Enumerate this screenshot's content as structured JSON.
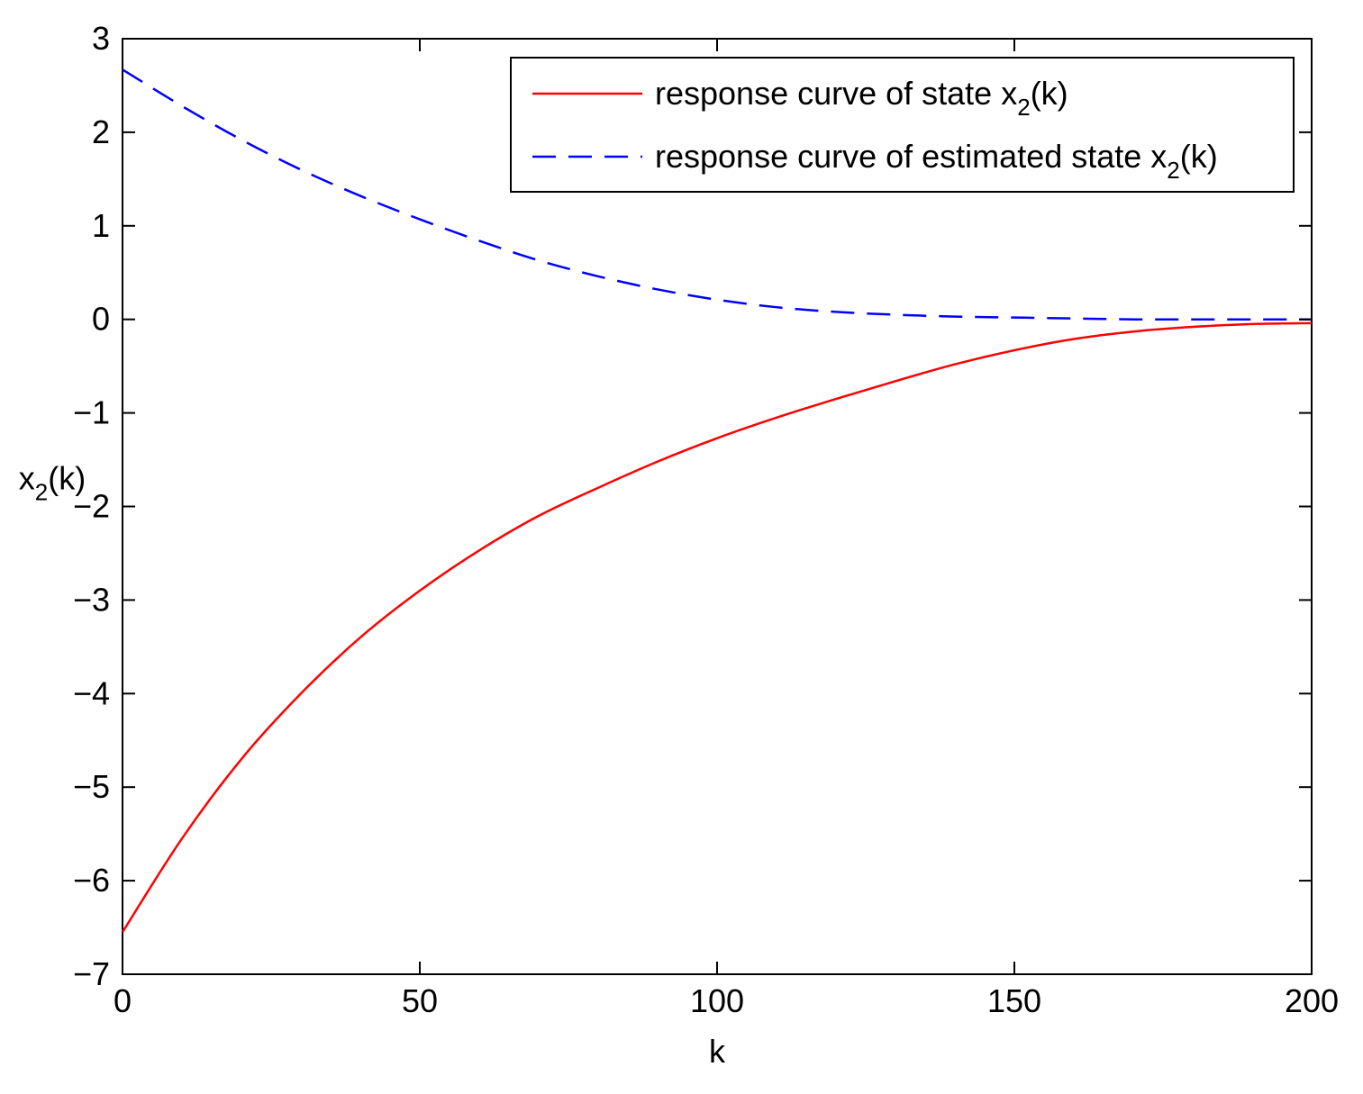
{
  "chart_data": {
    "type": "line",
    "title": "",
    "xlabel": "k",
    "ylabel": {
      "base": "x",
      "sub": "2",
      "suffix": "(k)"
    },
    "xlim": [
      0,
      200
    ],
    "ylim": [
      -7,
      3
    ],
    "xticks": [
      0,
      50,
      100,
      150,
      200
    ],
    "xtick_labels": [
      "0",
      "50",
      "100",
      "150",
      "200"
    ],
    "yticks": [
      3,
      2,
      1,
      0,
      -1,
      -2,
      -3,
      -4,
      -5,
      -6,
      -7
    ],
    "ytick_labels": [
      "3",
      "2",
      "1",
      "0",
      "−1",
      "−2",
      "−3",
      "−4",
      "−5",
      "−6",
      "−7"
    ],
    "grid": false,
    "legend_position": "top-right",
    "series": [
      {
        "name": "response curve of state x2(k)",
        "legend": {
          "base": "response curve of state x",
          "sub": "2",
          "suffix": "(k)"
        },
        "color": "#ff0000",
        "style": "solid",
        "x": [
          0,
          10,
          20,
          30,
          40,
          50,
          60,
          70,
          80,
          90,
          100,
          110,
          120,
          130,
          140,
          150,
          160,
          170,
          180,
          190,
          200
        ],
        "y": [
          -6.55,
          -5.55,
          -4.7,
          -4.0,
          -3.4,
          -2.9,
          -2.47,
          -2.1,
          -1.8,
          -1.52,
          -1.27,
          -1.05,
          -0.85,
          -0.66,
          -0.48,
          -0.33,
          -0.21,
          -0.13,
          -0.08,
          -0.05,
          -0.04
        ]
      },
      {
        "name": "response curve of estimated state x2(k)",
        "legend": {
          "base": "response curve of estimated state x",
          "sub": "2",
          "suffix": "(k)"
        },
        "color": "#0000ff",
        "style": "dashed",
        "x": [
          0,
          10,
          20,
          30,
          40,
          50,
          60,
          70,
          80,
          90,
          100,
          110,
          120,
          130,
          140,
          150,
          160,
          170,
          180,
          190,
          200
        ],
        "y": [
          2.67,
          2.28,
          1.92,
          1.6,
          1.32,
          1.07,
          0.84,
          0.63,
          0.46,
          0.32,
          0.21,
          0.13,
          0.08,
          0.05,
          0.03,
          0.02,
          0.01,
          0.0,
          0.0,
          0.0,
          0.0
        ]
      }
    ]
  }
}
